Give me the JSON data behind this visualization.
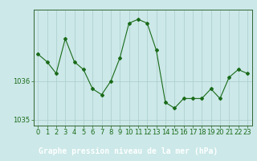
{
  "hours": [
    0,
    1,
    2,
    3,
    4,
    5,
    6,
    7,
    8,
    9,
    10,
    11,
    12,
    13,
    14,
    15,
    16,
    17,
    18,
    19,
    20,
    21,
    22,
    23
  ],
  "pressure": [
    1036.7,
    1036.5,
    1036.2,
    1037.1,
    1036.5,
    1036.3,
    1035.8,
    1035.65,
    1036.0,
    1036.6,
    1037.5,
    1037.6,
    1037.5,
    1036.8,
    1035.45,
    1035.3,
    1035.55,
    1035.55,
    1035.55,
    1035.8,
    1035.55,
    1036.1,
    1036.3,
    1036.2
  ],
  "line_color": "#1a6b1a",
  "marker": "D",
  "marker_size": 2.0,
  "bg_color": "#cce8e8",
  "grid_color": "#aacccc",
  "axis_color": "#336633",
  "tick_color": "#1a6b1a",
  "label_color": "#1a6b1a",
  "footer_bg": "#2d6b2d",
  "footer_text_color": "#ffffff",
  "xlabel": "Graphe pression niveau de la mer (hPa)",
  "ylim": [
    1034.85,
    1037.85
  ],
  "yticks": [
    1035,
    1036
  ],
  "label_fontsize": 7,
  "tick_fontsize": 6,
  "footer_fontsize": 7
}
